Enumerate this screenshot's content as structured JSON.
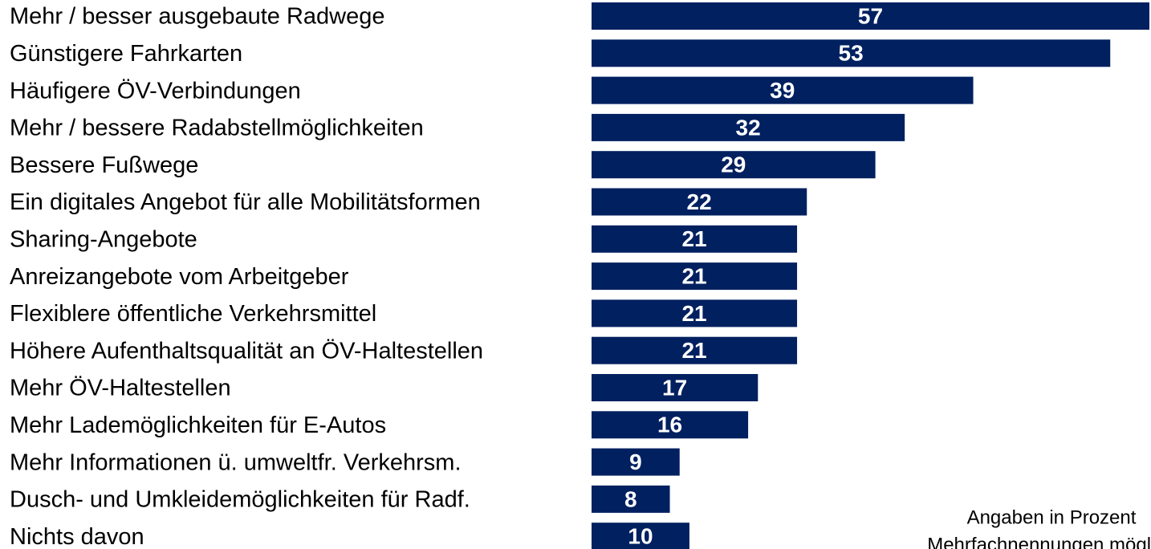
{
  "chart_data": {
    "type": "bar",
    "orientation": "horizontal",
    "categories": [
      "Mehr / besser ausgebaute Radwege",
      "Günstigere Fahrkarten",
      "Häufigere ÖV-Verbindungen",
      "Mehr / bessere Radabstellmöglichkeiten",
      "Bessere Fußwege",
      "Ein digitales Angebot für alle Mobilitätsformen",
      "Sharing-Angebote",
      "Anreizangebote vom Arbeitgeber",
      "Flexiblere öffentliche Verkehrsmittel",
      "Höhere Aufenthaltsqualität an ÖV-Haltestellen",
      "Mehr ÖV-Haltestellen",
      "Mehr Lademöglichkeiten für E-Autos",
      "Mehr Informationen ü. umweltfr. Verkehrsm.",
      "Dusch- und Umkleidemöglichkeiten für Radf.",
      "Nichts davon"
    ],
    "values": [
      57,
      53,
      39,
      32,
      29,
      22,
      21,
      21,
      21,
      21,
      17,
      16,
      9,
      8,
      10
    ],
    "color": "#002060",
    "annotations": [
      "Angaben in Prozent",
      "Mehrfachnennungen möglich"
    ]
  }
}
